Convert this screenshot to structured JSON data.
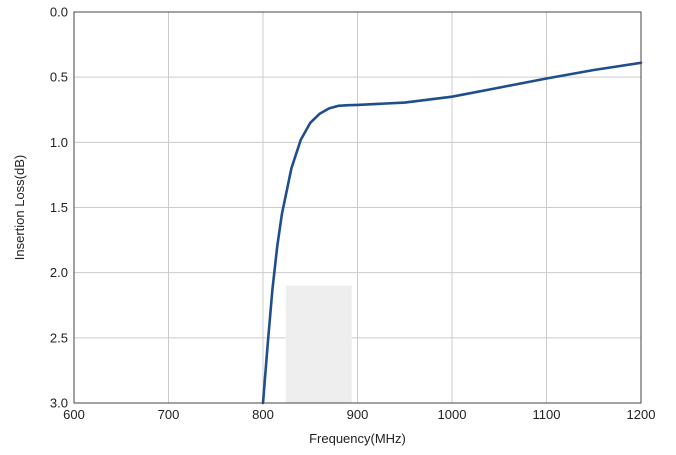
{
  "chart_data": {
    "type": "line",
    "title": "",
    "xlabel": "Frequency(MHz)",
    "ylabel": "Insertion Loss(dB)",
    "xlim": [
      600,
      1200
    ],
    "ylim": [
      0.0,
      3.0
    ],
    "y_inverted": true,
    "grid": true,
    "x_ticks": [
      "600",
      "700",
      "800",
      "900",
      "1000",
      "1100",
      "1200"
    ],
    "y_ticks": [
      "0.0",
      "0.5",
      "1.0",
      "1.5",
      "2.0",
      "2.5",
      "3.0"
    ],
    "series": [
      {
        "color": "#1f4e8c",
        "x": [
          800,
          805,
          810,
          815,
          820,
          830,
          840,
          850,
          860,
          870,
          880,
          890,
          900,
          950,
          1000,
          1050,
          1100,
          1150,
          1200
        ],
        "y": [
          3.0,
          2.55,
          2.13,
          1.8,
          1.55,
          1.2,
          0.98,
          0.85,
          0.78,
          0.74,
          0.72,
          0.715,
          0.713,
          0.695,
          0.65,
          0.58,
          0.51,
          0.445,
          0.39
        ]
      }
    ],
    "shaded_region": {
      "x": [
        824,
        894
      ],
      "y": [
        2.1,
        3.0
      ],
      "color": "#eeeeee"
    },
    "colors": {
      "grid": "#cccccc",
      "frame": "#444444"
    }
  }
}
